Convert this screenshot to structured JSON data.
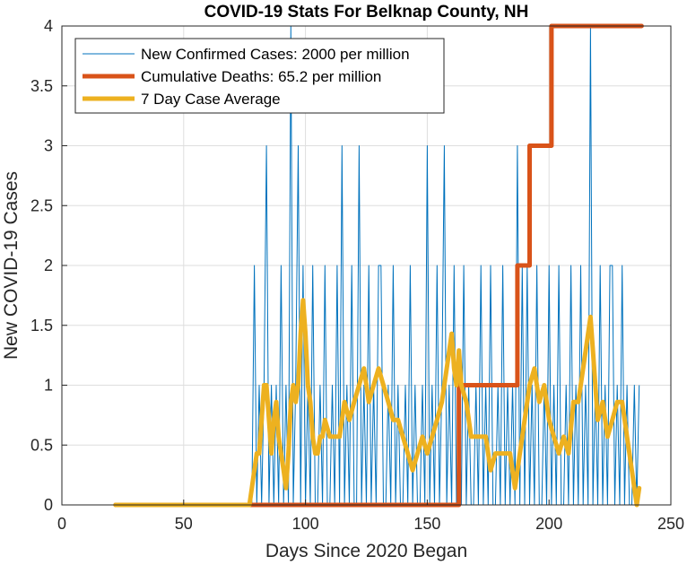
{
  "chart_data": {
    "type": "line",
    "title": "COVID-19 Stats For Belknap County, NH",
    "xlabel": "Days Since 2020 Began",
    "ylabel": "New COVID-19 Cases",
    "xlim": [
      0,
      250
    ],
    "ylim": [
      0,
      4
    ],
    "xticks": [
      "0",
      "50",
      "100",
      "150",
      "200",
      "250"
    ],
    "yticks": [
      "0",
      "0.5",
      "1",
      "1.5",
      "2",
      "2.5",
      "3",
      "3.5",
      "4"
    ],
    "grid": true,
    "legend_position": "top-left",
    "series": [
      {
        "name": "New Confirmed Cases: 2000 per million",
        "color": "#0072BD",
        "x": [
          78,
          79,
          80,
          81,
          82,
          83,
          84,
          85,
          86,
          87,
          88,
          89,
          90,
          91,
          92,
          93,
          94,
          95,
          96,
          97,
          98,
          99,
          100,
          101,
          102,
          103,
          104,
          105,
          106,
          107,
          108,
          109,
          110,
          111,
          112,
          113,
          114,
          115,
          116,
          117,
          118,
          119,
          120,
          121,
          122,
          123,
          124,
          125,
          126,
          127,
          128,
          129,
          130,
          131,
          132,
          133,
          134,
          135,
          136,
          137,
          138,
          139,
          140,
          141,
          142,
          143,
          144,
          145,
          146,
          147,
          148,
          149,
          150,
          151,
          152,
          153,
          154,
          155,
          156,
          157,
          158,
          159,
          160,
          161,
          162,
          163,
          164,
          165,
          166,
          167,
          168,
          169,
          170,
          171,
          172,
          173,
          174,
          175,
          176,
          177,
          178,
          179,
          180,
          181,
          182,
          183,
          184,
          185,
          186,
          187,
          188,
          189,
          190,
          191,
          192,
          193,
          194,
          195,
          196,
          197,
          198,
          199,
          200,
          201,
          202,
          203,
          204,
          205,
          206,
          207,
          208,
          209,
          210,
          211,
          212,
          213,
          214,
          215,
          216,
          217,
          218,
          219,
          220,
          221,
          222,
          223,
          224,
          225,
          226,
          227,
          228,
          229,
          230,
          231,
          232,
          233,
          234,
          235,
          236,
          237
        ],
        "y": [
          0,
          2,
          0,
          1,
          0,
          1,
          3,
          0,
          1,
          0,
          1,
          0,
          2,
          0,
          1,
          0,
          4,
          0,
          1,
          3,
          0,
          2,
          0,
          1,
          0,
          2,
          0,
          0,
          1,
          0,
          2,
          0,
          0,
          1,
          0,
          2,
          0,
          3,
          0,
          1,
          0,
          2,
          0,
          0,
          3,
          0,
          1,
          0,
          2,
          0,
          1,
          0,
          2,
          2,
          0,
          0,
          1,
          0,
          2,
          0,
          1,
          0,
          0,
          1,
          0,
          2,
          0,
          1,
          0,
          0,
          1,
          0,
          3,
          0,
          1,
          0,
          2,
          0,
          1,
          3,
          0,
          1,
          0,
          2,
          0,
          1,
          0,
          2,
          0,
          1,
          0,
          0,
          1,
          0,
          2,
          0,
          1,
          0,
          2,
          0,
          0,
          1,
          0,
          2,
          0,
          1,
          0,
          1,
          0,
          3,
          0,
          2,
          0,
          2,
          0,
          1,
          0,
          2,
          0,
          0,
          1,
          0,
          2,
          0,
          1,
          0,
          2,
          0,
          0,
          1,
          0,
          2,
          0,
          1,
          0,
          2,
          0,
          1,
          0,
          4,
          0,
          1,
          0,
          2,
          0,
          1,
          0,
          2,
          2,
          0,
          1,
          0,
          2,
          0,
          1,
          0,
          0,
          1,
          0,
          1
        ]
      },
      {
        "name": "Cumulative Deaths: 65.2 per million",
        "color": "#D95319",
        "x": [
          22,
          163,
          163,
          187,
          187,
          192,
          192,
          201,
          201,
          238
        ],
        "y": [
          0,
          0,
          1,
          1,
          2,
          2,
          3,
          3,
          4,
          4
        ]
      },
      {
        "name": "7 Day Case Average",
        "color": "#EDB120",
        "x": [
          22,
          50,
          77,
          78,
          79,
          80,
          81,
          82,
          83,
          84,
          85,
          86,
          87,
          88,
          89,
          90,
          91,
          92,
          93,
          94,
          95,
          96,
          97,
          98,
          99,
          100,
          101,
          102,
          103,
          104,
          105,
          106,
          107,
          108,
          110,
          112,
          114,
          116,
          118,
          120,
          122,
          124,
          126,
          128,
          130,
          132,
          134,
          136,
          138,
          140,
          142,
          144,
          146,
          148,
          150,
          152,
          154,
          156,
          158,
          160,
          161,
          162,
          163,
          164,
          166,
          168,
          170,
          172,
          174,
          176,
          178,
          180,
          182,
          184,
          186,
          188,
          190,
          192,
          194,
          196,
          198,
          200,
          202,
          204,
          206,
          208,
          210,
          212,
          214,
          216,
          217,
          218,
          219,
          220,
          222,
          224,
          226,
          228,
          230,
          232,
          234,
          235,
          236,
          237
        ],
        "y": [
          0,
          0,
          0,
          0.14,
          0.29,
          0.43,
          0.43,
          0.71,
          1.0,
          1.0,
          0.71,
          0.43,
          0.71,
          0.86,
          0.57,
          0.43,
          0.29,
          0.14,
          0.43,
          0.86,
          1.0,
          0.86,
          1.0,
          1.43,
          1.71,
          1.43,
          1.0,
          0.86,
          0.57,
          0.43,
          0.43,
          0.57,
          0.57,
          0.71,
          0.57,
          0.57,
          0.57,
          0.86,
          0.71,
          0.86,
          1.0,
          1.14,
          0.86,
          1.0,
          1.14,
          1.0,
          0.86,
          0.71,
          0.71,
          0.57,
          0.43,
          0.29,
          0.43,
          0.57,
          0.43,
          0.57,
          0.71,
          0.86,
          1.14,
          1.43,
          1.14,
          1.0,
          1.29,
          1.0,
          0.86,
          0.57,
          0.57,
          0.57,
          0.57,
          0.29,
          0.43,
          0.43,
          0.43,
          0.43,
          0.14,
          0.43,
          0.71,
          1.0,
          1.14,
          0.86,
          1.0,
          0.71,
          0.57,
          0.43,
          0.57,
          0.43,
          0.86,
          0.86,
          1.14,
          1.43,
          1.57,
          1.29,
          1.0,
          0.71,
          0.86,
          0.57,
          0.71,
          0.86,
          0.86,
          0.57,
          0.29,
          0.14,
          0.0,
          0.14
        ]
      }
    ]
  }
}
